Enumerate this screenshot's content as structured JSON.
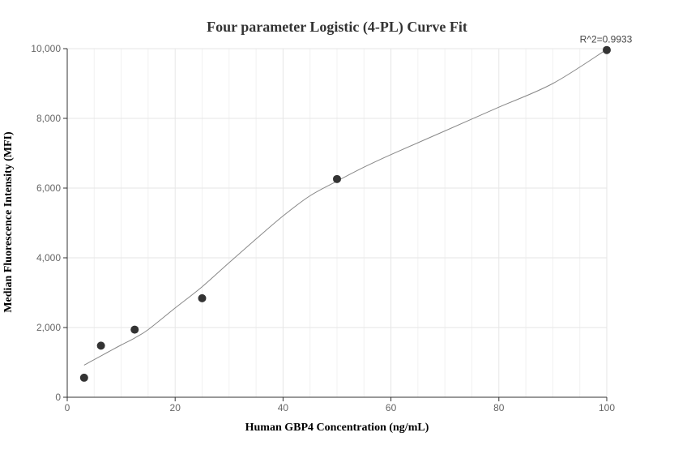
{
  "chart_data": {
    "type": "scatter",
    "title": "Four parameter Logistic (4-PL) Curve Fit",
    "xlabel": "Human GBP4 Concentration (ng/mL)",
    "ylabel": "Median Fluorescence Intensity (MFI)",
    "xlim": [
      0,
      100
    ],
    "ylim": [
      0,
      10000
    ],
    "x_ticks": [
      0,
      20,
      40,
      60,
      80,
      100
    ],
    "x_tick_labels": [
      "0",
      "20",
      "40",
      "60",
      "80",
      "100"
    ],
    "y_ticks": [
      0,
      2000,
      4000,
      6000,
      8000,
      10000
    ],
    "y_tick_labels": [
      "0",
      "2,000",
      "4,000",
      "6,000",
      "8,000",
      "10,000"
    ],
    "grid": true,
    "annotation": "R^2=0.9933",
    "points": {
      "x": [
        3.125,
        6.25,
        12.5,
        25,
        50,
        100
      ],
      "y": [
        560,
        1480,
        1940,
        2840,
        6260,
        9960
      ]
    },
    "fit_curve": {
      "x": [
        3.125,
        5,
        7.5,
        10,
        12.5,
        15,
        20,
        25,
        30,
        35,
        40,
        45,
        50,
        55,
        60,
        70,
        80,
        90,
        100
      ],
      "y": [
        920,
        1080,
        1290,
        1500,
        1700,
        1940,
        2560,
        3170,
        3860,
        4540,
        5200,
        5780,
        6200,
        6600,
        6960,
        7640,
        8320,
        9000,
        9980
      ]
    },
    "colors": {
      "points": "#333333",
      "curve": "#888888",
      "grid": "#e6e6e6",
      "axis": "#333333"
    }
  }
}
